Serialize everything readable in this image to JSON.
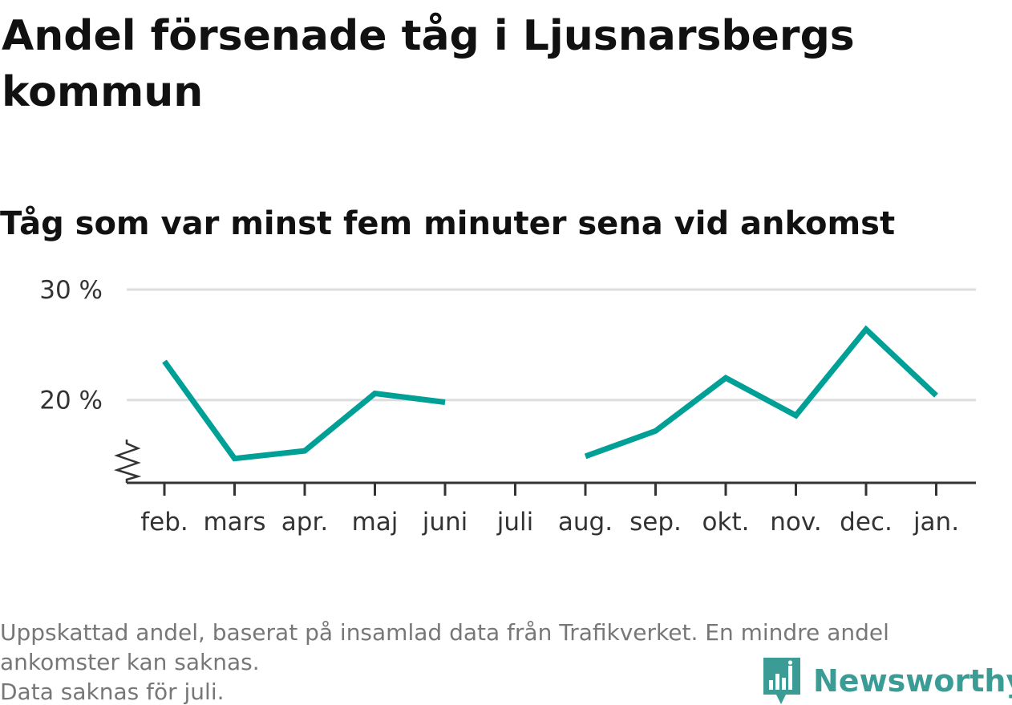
{
  "header": {
    "title": "Andel försenade tåg i Ljusnarsbergs kommun",
    "subtitle": "Tåg som var minst fem minuter sena vid ankomst"
  },
  "footer": {
    "note_line1": "Uppskattad andel, baserat på insamlad data från Trafikverket. En mindre andel",
    "note_line2": "ankomster kan saknas.",
    "note_line3": "Data saknas för juli.",
    "brand": "Newsworthy"
  },
  "colors": {
    "line": "#00a096",
    "grid": "#dddddd",
    "axis": "#333333",
    "brand": "#3a9c95"
  },
  "icons": {
    "brand_logo": "newsworthy-bar-chart-logo-icon",
    "axis_break": "zigzag-axis-break-icon"
  },
  "chart_data": {
    "type": "line",
    "title": "Tåg som var minst fem minuter sena vid ankomst",
    "xlabel": "",
    "ylabel": "",
    "categories": [
      "feb.",
      "mars",
      "apr.",
      "maj",
      "juni",
      "juli",
      "aug.",
      "sep.",
      "okt.",
      "nov.",
      "dec.",
      "jan."
    ],
    "series": [
      {
        "values": [
          23.5,
          14.7,
          15.4,
          20.6,
          19.8,
          null,
          14.9,
          17.2,
          22.0,
          18.6,
          26.4,
          20.4
        ]
      }
    ],
    "yticks": [
      {
        "value": 20,
        "label": "20 %"
      },
      {
        "value": 30,
        "label": "30 %"
      }
    ],
    "ylim": [
      12.5,
      30
    ],
    "y_axis_break": true,
    "grid": true,
    "legend": "none"
  }
}
